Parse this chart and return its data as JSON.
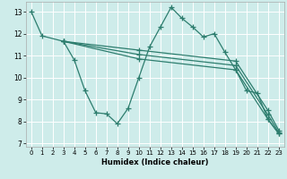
{
  "xlabel": "Humidex (Indice chaleur)",
  "bg_color": "#ceecea",
  "grid_color": "#ffffff",
  "line_color": "#2d7d6e",
  "xlim": [
    -0.5,
    23.5
  ],
  "ylim": [
    6.85,
    13.45
  ],
  "xticks": [
    0,
    1,
    2,
    3,
    4,
    5,
    6,
    7,
    8,
    9,
    10,
    11,
    12,
    13,
    14,
    15,
    16,
    17,
    18,
    19,
    20,
    21,
    22,
    23
  ],
  "yticks": [
    7,
    8,
    9,
    10,
    11,
    12,
    13
  ],
  "lines": [
    {
      "x": [
        0,
        1,
        3,
        4,
        5,
        6,
        7,
        8,
        9,
        10,
        11,
        12,
        13,
        14,
        15,
        16,
        17,
        18,
        19,
        20,
        21,
        22,
        23
      ],
      "y": [
        13.0,
        11.9,
        11.65,
        10.8,
        9.4,
        8.4,
        8.35,
        7.9,
        8.6,
        10.0,
        11.4,
        12.3,
        13.2,
        12.7,
        12.3,
        11.85,
        12.0,
        11.15,
        10.35,
        9.4,
        9.3,
        8.1,
        7.45
      ]
    },
    {
      "x": [
        3,
        10,
        19,
        22,
        23
      ],
      "y": [
        11.65,
        10.85,
        10.35,
        8.1,
        7.45
      ]
    },
    {
      "x": [
        3,
        10,
        19,
        22,
        23
      ],
      "y": [
        11.65,
        11.05,
        10.55,
        8.3,
        7.5
      ]
    },
    {
      "x": [
        3,
        10,
        19,
        22,
        23
      ],
      "y": [
        11.65,
        11.25,
        10.75,
        8.5,
        7.6
      ]
    }
  ],
  "marker": "+",
  "markersize": 4,
  "linewidth": 0.9
}
